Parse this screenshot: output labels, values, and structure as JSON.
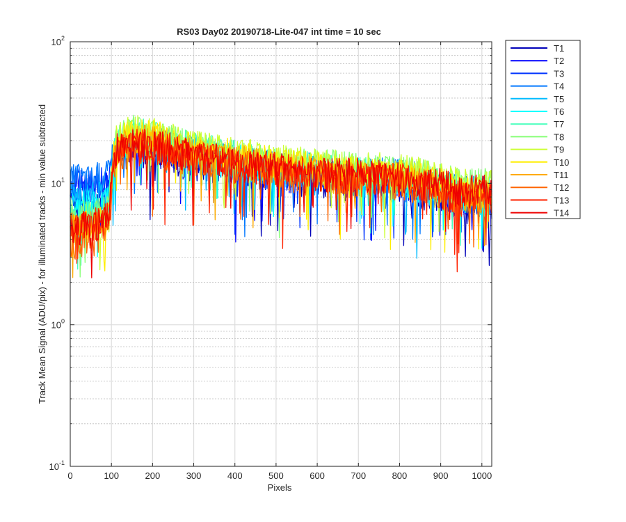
{
  "chart_data": {
    "type": "line",
    "title": "RS03 Day02 20190718-Lite-047 int time = 10 sec",
    "xlabel": "Pixels",
    "ylabel": "Track Mean Signal (ADU/pix) - for illuminated tracks - min value subtracted",
    "xlim": [
      0,
      1024
    ],
    "ylim": [
      0.1,
      100
    ],
    "yscale": "log",
    "grid": true,
    "minor_grid": true,
    "legend_placement": "outside-top-right",
    "xticks": [
      0,
      100,
      200,
      300,
      400,
      500,
      600,
      700,
      800,
      900,
      1000
    ],
    "xtick_labels": [
      "0",
      "100",
      "200",
      "300",
      "400",
      "500",
      "600",
      "700",
      "800",
      "900",
      "1000"
    ],
    "yticks": [
      {
        "value": 0.1,
        "base": "10",
        "exp": "-1"
      },
      {
        "value": 1,
        "base": "10",
        "exp": "0"
      },
      {
        "value": 10,
        "base": "10",
        "exp": "1"
      },
      {
        "value": 100,
        "base": "10",
        "exp": "2"
      }
    ],
    "series": [
      {
        "name": "T1",
        "color": "#0000b8",
        "x": [
          0,
          50,
          95,
          110,
          150,
          200,
          300,
          400,
          500,
          600,
          700,
          800,
          850,
          900,
          950,
          1000,
          1024
        ],
        "y": [
          7,
          7,
          8,
          15,
          18,
          17,
          14,
          13,
          11,
          11,
          10,
          10,
          9,
          8,
          7,
          7,
          7
        ]
      },
      {
        "name": "T2",
        "color": "#0000ff",
        "x": [
          0,
          50,
          95,
          110,
          150,
          200,
          300,
          400,
          500,
          600,
          700,
          800,
          850,
          900,
          950,
          1000,
          1024
        ],
        "y": [
          9,
          9,
          10,
          16,
          19,
          18,
          15,
          13,
          12,
          11,
          11,
          10,
          10,
          9,
          8,
          8,
          8
        ]
      },
      {
        "name": "T3",
        "color": "#0033ff",
        "x": [
          0,
          50,
          95,
          110,
          150,
          200,
          300,
          400,
          500,
          600,
          700,
          800,
          850,
          900,
          950,
          1000,
          1024
        ],
        "y": [
          10,
          10,
          11,
          17,
          20,
          19,
          16,
          14,
          12,
          12,
          11,
          11,
          10,
          9,
          8,
          8,
          8
        ]
      },
      {
        "name": "T4",
        "color": "#0077ff",
        "x": [
          0,
          50,
          95,
          110,
          150,
          200,
          300,
          400,
          500,
          600,
          700,
          800,
          850,
          900,
          950,
          1000,
          1024
        ],
        "y": [
          11,
          11,
          12,
          18,
          21,
          20,
          17,
          15,
          13,
          13,
          12,
          12,
          11,
          10,
          9,
          9,
          9
        ]
      },
      {
        "name": "T5",
        "color": "#00bbff",
        "x": [
          0,
          50,
          95,
          110,
          150,
          200,
          300,
          400,
          500,
          600,
          700,
          800,
          850,
          900,
          950,
          1000,
          1024
        ],
        "y": [
          8,
          8,
          9,
          17,
          20,
          19,
          16,
          14,
          13,
          12,
          11,
          11,
          10,
          9,
          8,
          8,
          8
        ]
      },
      {
        "name": "T6",
        "color": "#00ffff",
        "x": [
          0,
          50,
          95,
          110,
          150,
          200,
          300,
          400,
          500,
          600,
          700,
          800,
          850,
          900,
          950,
          1000,
          1024
        ],
        "y": [
          7,
          7,
          8,
          18,
          22,
          21,
          17,
          15,
          13,
          13,
          12,
          11,
          10,
          9,
          8,
          8,
          8
        ]
      },
      {
        "name": "T7",
        "color": "#44ffbb",
        "x": [
          0,
          50,
          95,
          110,
          150,
          200,
          300,
          400,
          500,
          600,
          700,
          800,
          850,
          900,
          950,
          1000,
          1024
        ],
        "y": [
          6,
          6,
          7,
          19,
          23,
          22,
          18,
          16,
          14,
          13,
          12,
          12,
          11,
          10,
          9,
          9,
          9
        ]
      },
      {
        "name": "T8",
        "color": "#88ff77",
        "x": [
          0,
          50,
          95,
          110,
          150,
          200,
          300,
          400,
          500,
          600,
          700,
          800,
          850,
          900,
          950,
          1000,
          1024
        ],
        "y": [
          6,
          6,
          7,
          20,
          24,
          22,
          18,
          16,
          14,
          14,
          13,
          12,
          12,
          11,
          10,
          10,
          10
        ]
      },
      {
        "name": "T9",
        "color": "#ccff33",
        "x": [
          0,
          50,
          95,
          110,
          150,
          200,
          300,
          400,
          500,
          600,
          700,
          800,
          850,
          900,
          950,
          1000,
          1024
        ],
        "y": [
          5,
          5,
          6,
          20,
          24,
          23,
          19,
          17,
          15,
          14,
          13,
          13,
          12,
          11,
          10,
          10,
          10
        ]
      },
      {
        "name": "T10",
        "color": "#ffee00",
        "x": [
          0,
          50,
          95,
          110,
          150,
          200,
          300,
          400,
          500,
          600,
          700,
          800,
          850,
          900,
          950,
          1000,
          1024
        ],
        "y": [
          5,
          5,
          6,
          19,
          23,
          22,
          18,
          16,
          14,
          13,
          12,
          12,
          11,
          10,
          9,
          9,
          9
        ]
      },
      {
        "name": "T11",
        "color": "#ffaa00",
        "x": [
          0,
          50,
          95,
          110,
          150,
          200,
          300,
          400,
          500,
          600,
          700,
          800,
          850,
          900,
          950,
          1000,
          1024
        ],
        "y": [
          5,
          5,
          6,
          17,
          21,
          20,
          16,
          15,
          13,
          12,
          11,
          11,
          10,
          9,
          8,
          8,
          8
        ]
      },
      {
        "name": "T12",
        "color": "#ff6600",
        "x": [
          0,
          50,
          95,
          110,
          150,
          200,
          300,
          400,
          500,
          600,
          700,
          800,
          850,
          900,
          950,
          1000,
          1024
        ],
        "y": [
          4,
          4,
          5,
          16,
          19,
          18,
          15,
          14,
          12,
          11,
          11,
          10,
          10,
          9,
          8,
          8,
          8
        ]
      },
      {
        "name": "T13",
        "color": "#ff2200",
        "x": [
          0,
          50,
          95,
          110,
          150,
          200,
          300,
          400,
          500,
          600,
          700,
          800,
          850,
          900,
          950,
          1000,
          1024
        ],
        "y": [
          5,
          5,
          6,
          17,
          20,
          19,
          16,
          14,
          13,
          12,
          11,
          11,
          10,
          9,
          8,
          8,
          8
        ]
      },
      {
        "name": "T14",
        "color": "#ee0000",
        "x": [
          0,
          50,
          95,
          110,
          150,
          200,
          300,
          400,
          500,
          600,
          700,
          800,
          850,
          900,
          950,
          1000,
          1024
        ],
        "y": [
          5,
          5,
          6,
          18,
          20,
          19,
          16,
          14,
          13,
          12,
          12,
          11,
          10,
          10,
          9,
          9,
          9
        ]
      }
    ]
  }
}
